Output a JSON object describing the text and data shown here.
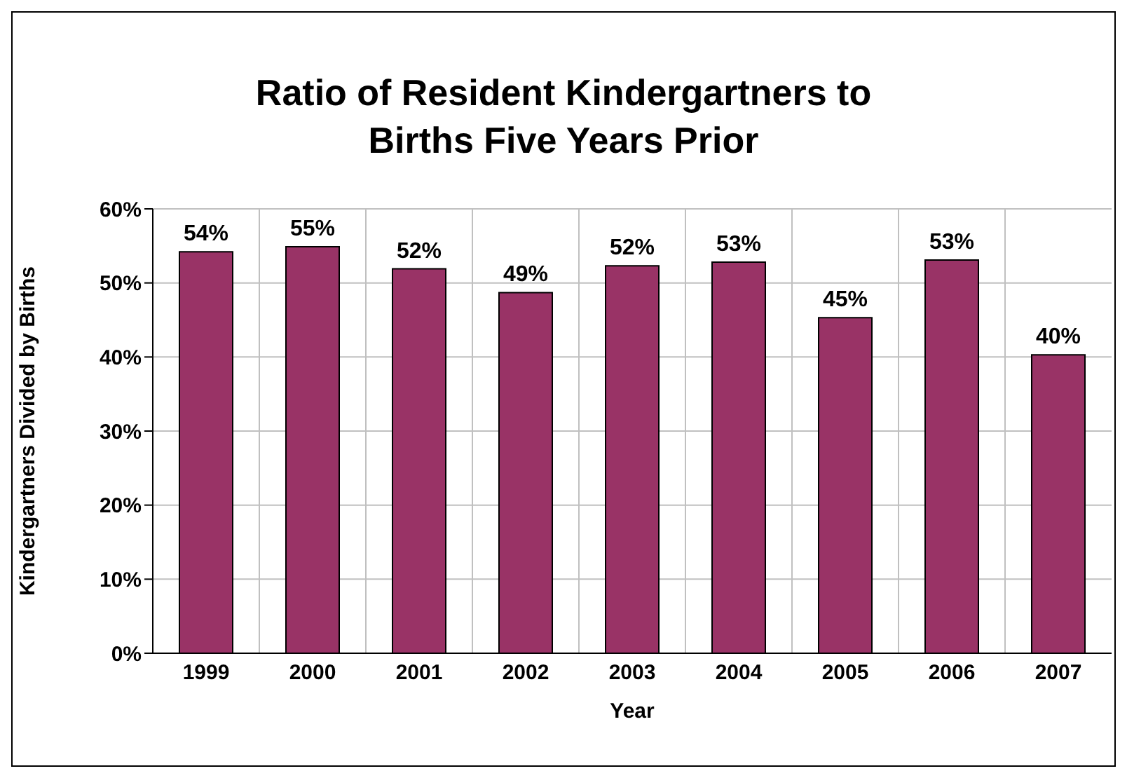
{
  "chart_data": {
    "type": "bar",
    "title": "Ratio of Resident Kindergartners to\nBirths Five Years Prior",
    "xlabel": "Year",
    "ylabel": "Kindergartners Divided by Births",
    "categories": [
      "1999",
      "2000",
      "2001",
      "2002",
      "2003",
      "2004",
      "2005",
      "2006",
      "2007"
    ],
    "values": [
      54.2,
      54.9,
      51.9,
      48.7,
      52.3,
      52.8,
      45.3,
      53.1,
      40.3
    ],
    "value_labels": [
      "54%",
      "55%",
      "52%",
      "49%",
      "52%",
      "53%",
      "45%",
      "53%",
      "40%"
    ],
    "color": "#993366",
    "ylim": [
      0,
      60
    ],
    "yticks": [
      {
        "value": 0,
        "label": "0%"
      },
      {
        "value": 10,
        "label": "10%"
      },
      {
        "value": 20,
        "label": "20%"
      },
      {
        "value": 30,
        "label": "30%"
      },
      {
        "value": 40,
        "label": "40%"
      },
      {
        "value": 50,
        "label": "50%"
      },
      {
        "value": 60,
        "label": "60%"
      }
    ],
    "grid": true
  }
}
